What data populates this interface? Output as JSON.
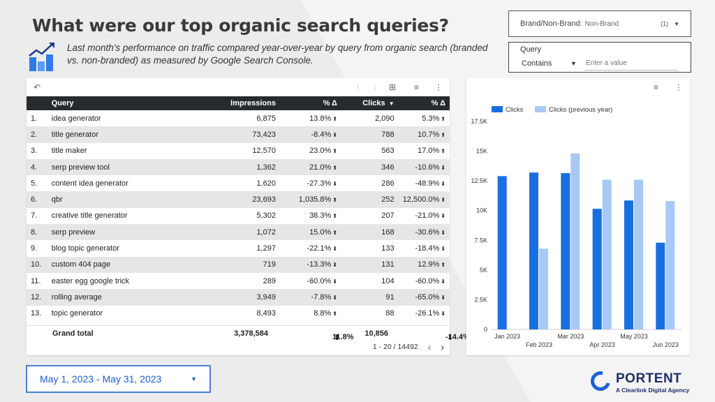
{
  "header": {
    "title": "What were our top organic search queries?",
    "subtitle": "Last month's performance on traffic compared year-over-year by query from organic search (branded vs. non-branded) as measured by Google Search Console."
  },
  "filters": {
    "brand": {
      "label": "Brand/Non-Brand:",
      "value": "Non-Brand",
      "count": "(1)"
    },
    "query": {
      "label": "Query",
      "operator": "Contains",
      "placeholder": "Enter a value"
    }
  },
  "table": {
    "columns": [
      "Query",
      "Impressions",
      "% Δ",
      "Clicks",
      "% Δ"
    ],
    "rows": [
      {
        "n": "1.",
        "query": "idea generator",
        "impressions": "6,875",
        "imp_delta": "13.8%",
        "imp_dir": "up",
        "clicks": "2,090",
        "clk_delta": "5.3%",
        "clk_dir": "up"
      },
      {
        "n": "2.",
        "query": "title generator",
        "impressions": "73,423",
        "imp_delta": "-8.4%",
        "imp_dir": "down",
        "clicks": "788",
        "clk_delta": "10.7%",
        "clk_dir": "up"
      },
      {
        "n": "3.",
        "query": "title maker",
        "impressions": "12,570",
        "imp_delta": "23.0%",
        "imp_dir": "up",
        "clicks": "563",
        "clk_delta": "17.0%",
        "clk_dir": "up"
      },
      {
        "n": "4.",
        "query": "serp preview tool",
        "impressions": "1,362",
        "imp_delta": "21.0%",
        "imp_dir": "up",
        "clicks": "346",
        "clk_delta": "-10.6%",
        "clk_dir": "down"
      },
      {
        "n": "5.",
        "query": "content idea generator",
        "impressions": "1,620",
        "imp_delta": "-27.3%",
        "imp_dir": "down",
        "clicks": "286",
        "clk_delta": "-48.9%",
        "clk_dir": "down"
      },
      {
        "n": "6.",
        "query": "qbr",
        "impressions": "23,693",
        "imp_delta": "1,035.8%",
        "imp_dir": "up",
        "clicks": "252",
        "clk_delta": "12,500.0%",
        "clk_dir": "up"
      },
      {
        "n": "7.",
        "query": "creative title generator",
        "impressions": "5,302",
        "imp_delta": "38.3%",
        "imp_dir": "up",
        "clicks": "207",
        "clk_delta": "-21.0%",
        "clk_dir": "down"
      },
      {
        "n": "8.",
        "query": "serp preview",
        "impressions": "1,072",
        "imp_delta": "15.0%",
        "imp_dir": "up",
        "clicks": "168",
        "clk_delta": "-30.6%",
        "clk_dir": "down"
      },
      {
        "n": "9.",
        "query": "blog topic generator",
        "impressions": "1,297",
        "imp_delta": "-22.1%",
        "imp_dir": "down",
        "clicks": "133",
        "clk_delta": "-18.4%",
        "clk_dir": "down"
      },
      {
        "n": "10.",
        "query": "custom 404 page",
        "impressions": "719",
        "imp_delta": "-13.3%",
        "imp_dir": "down",
        "clicks": "131",
        "clk_delta": "12.9%",
        "clk_dir": "up"
      },
      {
        "n": "11.",
        "query": "easter egg google trick",
        "impressions": "289",
        "imp_delta": "-60.0%",
        "imp_dir": "down",
        "clicks": "104",
        "clk_delta": "-60.0%",
        "clk_dir": "down"
      },
      {
        "n": "12.",
        "query": "rolling average",
        "impressions": "3,949",
        "imp_delta": "-7.8%",
        "imp_dir": "down",
        "clicks": "91",
        "clk_delta": "-65.0%",
        "clk_dir": "down"
      },
      {
        "n": "13.",
        "query": "topic generator",
        "impressions": "8,493",
        "imp_delta": "8.8%",
        "imp_dir": "up",
        "clicks": "88",
        "clk_delta": "-26.1%",
        "clk_dir": "down"
      }
    ],
    "grand_total": {
      "label": "Grand total",
      "impressions": "3,378,584",
      "imp_delta": "11.8%",
      "imp_dir": "up",
      "clicks": "10,856",
      "clk_delta": "-14.4%",
      "clk_dir": "down"
    },
    "pagination": "1 - 20 / 14492"
  },
  "chart_data": {
    "type": "bar",
    "categories": [
      "Jan 2023",
      "Feb 2023",
      "Mar 2023",
      "Apr 2023",
      "May 2023",
      "Jun 2023"
    ],
    "series": [
      {
        "name": "Clicks",
        "color": "#1a6fe0",
        "values": [
          12900,
          13200,
          13150,
          10150,
          10850,
          7300
        ]
      },
      {
        "name": "Clicks (previous year)",
        "color": "#a7c9f5",
        "values": [
          0,
          6800,
          14800,
          12600,
          12600,
          10800
        ]
      }
    ],
    "yticks": [
      "0",
      "2.5K",
      "5K",
      "7.5K",
      "10K",
      "12.5K",
      "15K",
      "17.5K"
    ],
    "ylim": [
      0,
      17500
    ],
    "legend": "top-left"
  },
  "date_range": {
    "label": "May 1, 2023 - May 31, 2023"
  },
  "brand": {
    "name": "PORTENT",
    "tagline": "A Clearlink Digital Agency"
  },
  "colors": {
    "accent": "#1a6fe0",
    "header_bg": "#262b2f"
  }
}
